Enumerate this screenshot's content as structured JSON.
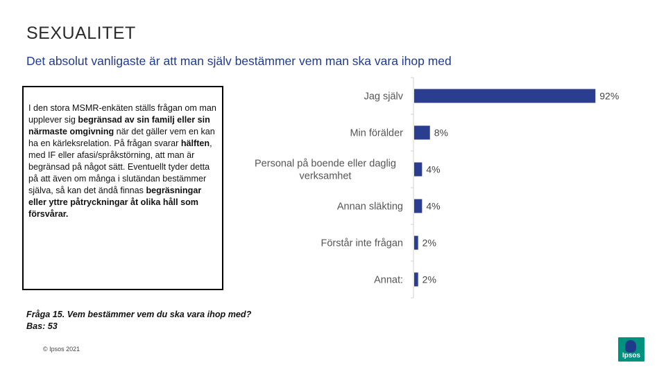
{
  "header": {
    "title": "SEXUALITET",
    "subtitle": "Det absolut vanligaste är att man själv bestämmer vem man ska vara ihop med"
  },
  "note": {
    "parts": [
      {
        "text": "I den stora MSMR-enkäten ställs frågan om man upplever sig ",
        "bold": false
      },
      {
        "text": "begränsad av sin familj eller sin närmaste omgivning",
        "bold": true
      },
      {
        "text": " när det gäller vem en kan ha en kärleksrelation. På frågan svarar ",
        "bold": false
      },
      {
        "text": "hälften",
        "bold": true
      },
      {
        "text": ", med IF eller afasi/språkstörning, att man är begränsad på något sätt. Eventuellt tyder detta på att även om många i slutändan bestämmer själva, så kan det ändå finnas ",
        "bold": false
      },
      {
        "text": "begräsningar eller yttre påtryckningar åt olika håll som försvårar.",
        "bold": true
      }
    ]
  },
  "footer": {
    "question": "Fråga 15. Vem bestämmer vem du ska vara ihop med?",
    "base": "Bas: 53",
    "copyright": "© Ipsos 2021",
    "logo_text": "Ipsos"
  },
  "colors": {
    "bar": "#2a3d91",
    "axis": "#d0d0d0",
    "logo_bg": "#00927f"
  },
  "chart_data": {
    "type": "bar",
    "orientation": "horizontal",
    "categories": [
      [
        "Jag själv"
      ],
      [
        "Min förälder"
      ],
      [
        "Personal på boende eller daglig",
        "verksamhet"
      ],
      [
        "Annan släkting"
      ],
      [
        "Förstår inte frågan"
      ],
      [
        "Annat:"
      ]
    ],
    "values": [
      92,
      8,
      4,
      4,
      2,
      2
    ],
    "value_labels": [
      "92%",
      "8%",
      "4%",
      "4%",
      "2%",
      "2%"
    ],
    "xlim": [
      0,
      100
    ],
    "grid": false,
    "legend": "none"
  }
}
